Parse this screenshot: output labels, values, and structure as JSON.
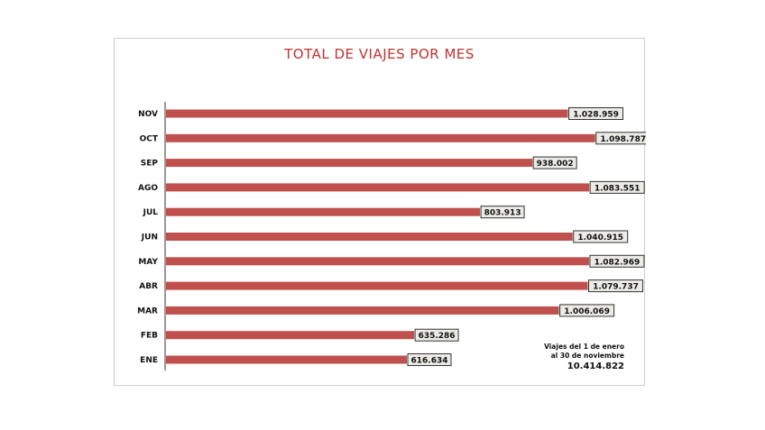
{
  "chart_data": {
    "type": "bar",
    "orientation": "horizontal",
    "title": "TOTAL DE VIAJES POR MES",
    "categories": [
      "NOV",
      "OCT",
      "SEP",
      "AGO",
      "JUL",
      "JUN",
      "MAY",
      "ABR",
      "MAR",
      "FEB",
      "ENE"
    ],
    "values": [
      1028959,
      1098787,
      938002,
      1083551,
      803913,
      1040915,
      1082969,
      1079737,
      1006069,
      635286,
      616634
    ],
    "value_labels": [
      "1.028.959",
      "1.098.787",
      "938.002",
      "1.083.551",
      "803.913",
      "1.040.915",
      "1.082.969",
      "1.079.737",
      "1.006.069",
      "635.286",
      "616.634"
    ],
    "xlim": [
      0,
      1100000
    ],
    "grid": false,
    "legend": "none",
    "bar_color": "#c0504d",
    "title_color": "#c0332f"
  },
  "note": {
    "line1": "Viajes del  1 de enero",
    "line2": "al 30 de noviembre",
    "total": "10.414.822"
  }
}
